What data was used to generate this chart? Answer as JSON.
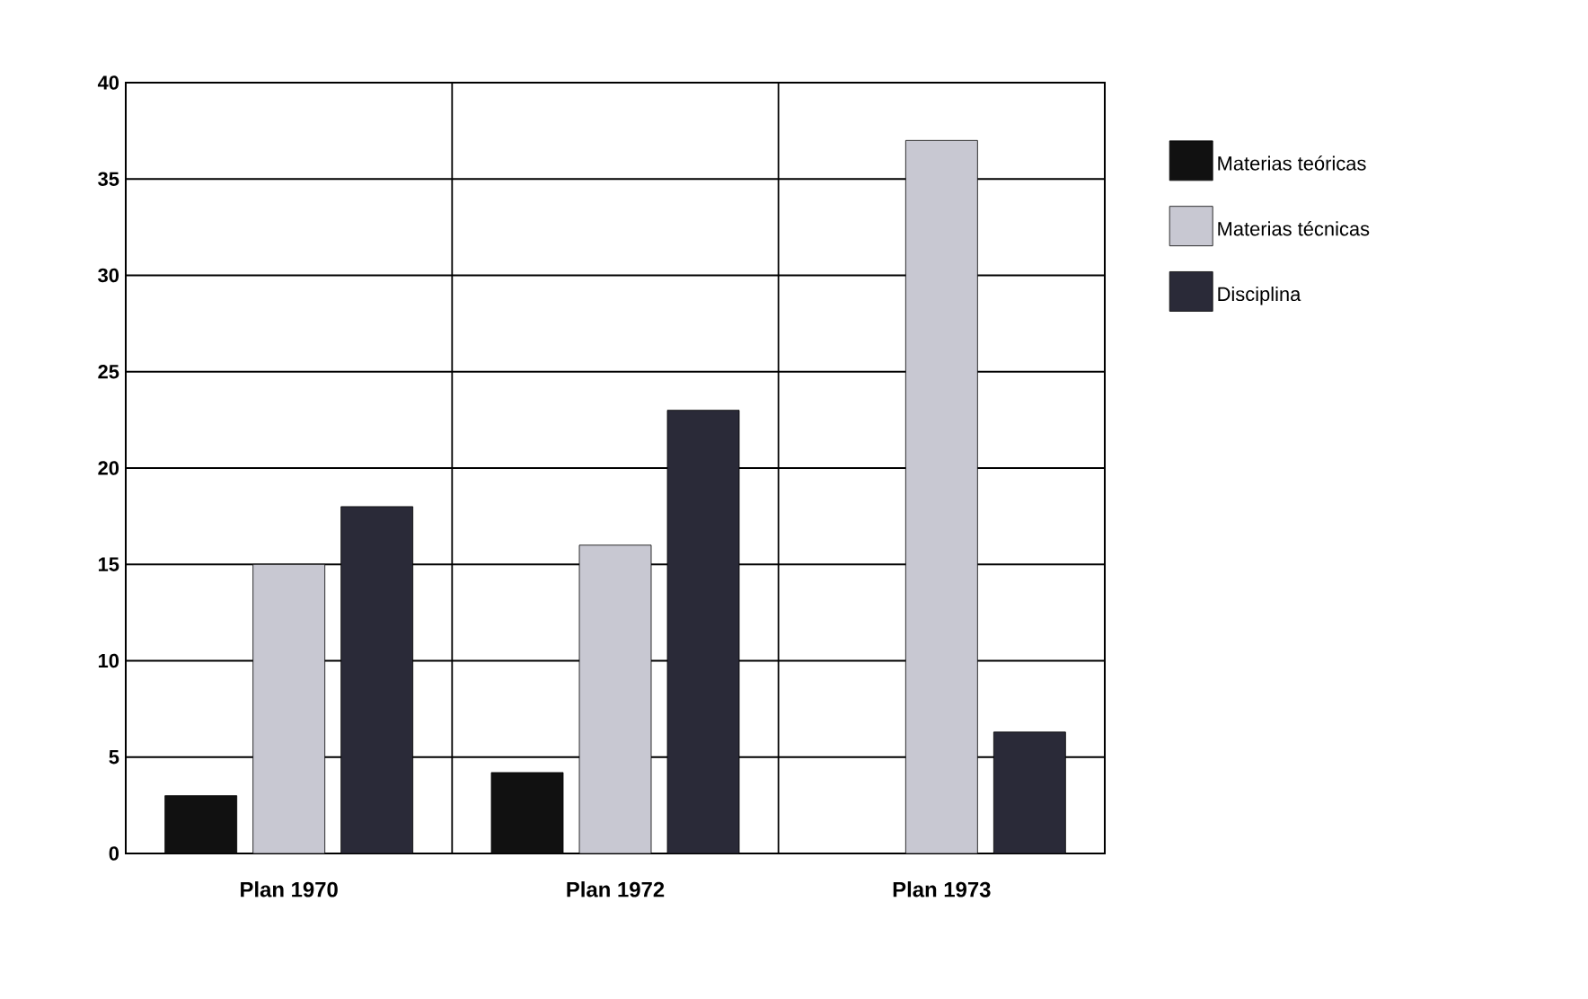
{
  "chart_data": {
    "type": "bar",
    "categories": [
      "Plan 1970",
      "Plan 1972",
      "Plan 1973"
    ],
    "series": [
      {
        "name": "Materias teóricas",
        "color": "#111111",
        "values": [
          3,
          4.2,
          null
        ]
      },
      {
        "name": "Materias técnicas",
        "color": "#c8c8d2",
        "values": [
          15,
          16,
          37
        ]
      },
      {
        "name": "Disciplina",
        "color": "#2a2a38",
        "values": [
          18,
          23,
          6.3
        ]
      }
    ],
    "ylim": [
      0,
      40
    ],
    "yticks": [
      0,
      5,
      10,
      15,
      20,
      25,
      30,
      35,
      40
    ],
    "grid": true,
    "legend": "right"
  }
}
